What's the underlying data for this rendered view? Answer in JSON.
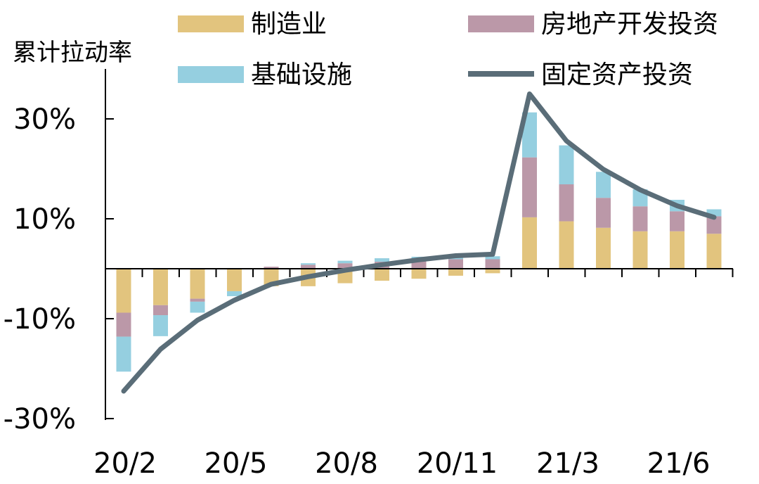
{
  "chart_data": {
    "type": "bar",
    "subtype": "stacked-bar-with-line",
    "ylabel": "累计拉动率",
    "yticks": [
      "30%",
      "10%",
      "-10%",
      "-30%"
    ],
    "ytick_values": [
      30,
      10,
      -10,
      -30
    ],
    "ylim": [
      -30,
      38
    ],
    "x": [
      "20/2",
      "20/3",
      "20/4",
      "20/5",
      "20/6",
      "20/7",
      "20/8",
      "20/9",
      "20/10",
      "20/11",
      "20/12",
      "21/2",
      "21/3",
      "21/4",
      "21/5",
      "21/6",
      "21/7"
    ],
    "xtick_labels": [
      "20/2",
      "20/5",
      "20/8",
      "20/11",
      "21/3",
      "21/6"
    ],
    "xtick_indices": [
      0,
      3,
      6,
      9,
      12,
      15
    ],
    "series": [
      {
        "name": "制造业",
        "kind": "bar",
        "color": "#e2c47e",
        "values": [
          -8.8,
          -7.3,
          -6.0,
          -4.5,
          -3.5,
          -3.5,
          -2.9,
          -2.4,
          -2.0,
          -1.4,
          -0.9,
          10.3,
          9.5,
          8.2,
          7.5,
          7.5,
          7.0
        ]
      },
      {
        "name": "房地产开发投资",
        "kind": "bar",
        "color": "#bb98a8",
        "values": [
          -4.8,
          -2.0,
          -0.6,
          0.0,
          0.4,
          0.8,
          1.1,
          1.4,
          1.7,
          1.9,
          1.9,
          12.0,
          7.4,
          6.0,
          5.0,
          4.0,
          3.5
        ]
      },
      {
        "name": "基础设施",
        "kind": "bar",
        "color": "#95cfe0",
        "values": [
          -7.0,
          -4.2,
          -2.2,
          -1.0,
          0.0,
          0.3,
          0.5,
          0.7,
          0.7,
          0.6,
          0.6,
          9.0,
          7.8,
          5.2,
          3.4,
          2.3,
          1.4
        ]
      },
      {
        "name": "固定资产投资",
        "kind": "line",
        "color": "#5a6d78",
        "values": [
          -24.5,
          -16.1,
          -10.3,
          -6.3,
          -3.1,
          -1.6,
          -0.3,
          0.8,
          1.8,
          2.6,
          2.9,
          35.0,
          25.6,
          19.9,
          15.8,
          12.6,
          10.3
        ]
      }
    ],
    "legend_position": "top",
    "grid": false
  }
}
